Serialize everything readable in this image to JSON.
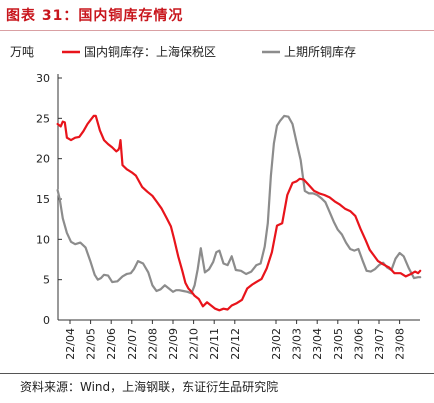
{
  "figure": {
    "title": "图表 31：国内铜库存情况",
    "source": "资料来源：Wind，上海钢联，东证衍生品研究院"
  },
  "chart_data": {
    "type": "line",
    "ylabel": "万吨",
    "ylim": [
      0,
      30
    ],
    "yticks": [
      0,
      5,
      10,
      15,
      20,
      25,
      30
    ],
    "xlim": [
      0,
      17.2
    ],
    "grid": false,
    "legend": "top",
    "xtick_positions": [
      0,
      1,
      2,
      3,
      4,
      5,
      6,
      7,
      8,
      10,
      11,
      12,
      13,
      14,
      15,
      16
    ],
    "xtick_labels": [
      "22/04",
      "22/05",
      "22/06",
      "22/07",
      "22/08",
      "22/09",
      "22/10",
      "22/11",
      "22/12",
      "23/02",
      "23/03",
      "23/04",
      "23/05",
      "23/06",
      "23/07",
      "23/08"
    ],
    "series": [
      {
        "name": "国内铜库存：上海保税区",
        "color": "#e8141b",
        "x": [
          -0.6,
          -0.45,
          -0.35,
          -0.25,
          -0.15,
          0.05,
          0.25,
          0.45,
          0.65,
          0.85,
          1.0,
          1.15,
          1.25,
          1.45,
          1.65,
          1.85,
          2.05,
          2.25,
          2.35,
          2.4,
          2.45,
          2.55,
          2.75,
          3.0,
          3.2,
          3.5,
          3.75,
          4.0,
          4.2,
          4.45,
          4.7,
          4.9,
          5.05,
          5.25,
          5.45,
          5.6,
          5.75,
          5.9,
          6.05,
          6.25,
          6.45,
          6.65,
          6.85,
          7.05,
          7.25,
          7.45,
          7.65,
          7.85,
          8.1,
          8.35,
          8.6,
          8.85,
          9.1,
          9.3,
          9.55,
          9.8,
          10.05,
          10.3,
          10.55,
          10.8,
          11.0,
          11.15,
          11.35,
          11.6,
          11.85,
          12.1,
          12.35,
          12.6,
          12.85,
          13.1,
          13.35,
          13.6,
          13.85,
          14.1,
          14.35,
          14.55,
          14.75,
          14.95,
          15.2,
          15.5,
          15.75,
          16.05,
          16.3,
          16.55,
          16.75,
          16.9,
          17.0
        ],
        "y": [
          24.3,
          24.0,
          24.6,
          24.5,
          22.6,
          22.3,
          22.6,
          22.7,
          23.4,
          24.3,
          24.8,
          25.3,
          25.3,
          23.5,
          22.3,
          21.8,
          21.4,
          20.9,
          21.1,
          21.4,
          22.3,
          19.2,
          18.7,
          18.3,
          17.9,
          16.5,
          15.9,
          15.4,
          14.7,
          13.8,
          12.6,
          11.6,
          10.1,
          7.9,
          6.1,
          4.6,
          3.9,
          3.5,
          3.0,
          2.6,
          1.7,
          2.2,
          1.8,
          1.4,
          1.2,
          1.4,
          1.3,
          1.8,
          2.1,
          2.5,
          3.9,
          4.4,
          4.8,
          5.1,
          6.4,
          8.4,
          11.7,
          12.0,
          15.5,
          17.0,
          17.2,
          17.5,
          17.4,
          16.7,
          16.0,
          15.7,
          15.5,
          15.2,
          14.7,
          14.3,
          13.8,
          13.5,
          12.9,
          11.3,
          9.9,
          8.7,
          8.0,
          7.3,
          6.9,
          6.5,
          5.8,
          5.8,
          5.4,
          5.7,
          6.0,
          5.8,
          6.1
        ]
      },
      {
        "name": "上期所铜库存",
        "color": "#8c8c8c",
        "x": [
          -0.6,
          -0.5,
          -0.35,
          -0.15,
          0.05,
          0.25,
          0.5,
          0.75,
          1.0,
          1.2,
          1.35,
          1.5,
          1.65,
          1.85,
          2.05,
          2.3,
          2.55,
          2.75,
          2.95,
          3.1,
          3.3,
          3.55,
          3.8,
          4.0,
          4.2,
          4.4,
          4.6,
          4.8,
          5.0,
          5.15,
          5.3,
          5.5,
          5.7,
          5.9,
          6.05,
          6.2,
          6.35,
          6.55,
          6.75,
          6.95,
          7.1,
          7.25,
          7.45,
          7.65,
          7.85,
          8.05,
          8.3,
          8.55,
          8.8,
          9.05,
          9.25,
          9.45,
          9.6,
          9.75,
          9.9,
          10.05,
          10.2,
          10.4,
          10.6,
          10.8,
          11.0,
          11.2,
          11.4,
          11.6,
          11.8,
          12.0,
          12.2,
          12.4,
          12.6,
          12.8,
          13.0,
          13.2,
          13.4,
          13.6,
          13.8,
          14.0,
          14.2,
          14.4,
          14.6,
          14.8,
          15.0,
          15.2,
          15.4,
          15.6,
          15.8,
          16.0,
          16.2,
          16.45,
          16.7,
          16.9,
          17.0
        ],
        "y": [
          16.1,
          15.0,
          12.6,
          10.8,
          9.7,
          9.4,
          9.6,
          9.0,
          7.2,
          5.6,
          5.0,
          5.2,
          5.6,
          5.5,
          4.7,
          4.8,
          5.4,
          5.7,
          5.8,
          6.3,
          7.3,
          7.0,
          5.9,
          4.3,
          3.6,
          3.8,
          4.3,
          3.9,
          3.5,
          3.7,
          3.7,
          3.6,
          3.5,
          3.3,
          4.3,
          6.3,
          8.9,
          5.9,
          6.3,
          7.2,
          8.4,
          8.6,
          7.0,
          6.8,
          7.9,
          6.2,
          6.1,
          5.7,
          6.0,
          6.8,
          7.0,
          9.1,
          12.0,
          17.9,
          21.9,
          24.1,
          24.7,
          25.3,
          25.2,
          24.3,
          22.0,
          19.8,
          16.0,
          15.7,
          15.7,
          15.5,
          15.1,
          14.6,
          13.4,
          12.2,
          11.2,
          10.6,
          9.6,
          8.8,
          8.6,
          8.8,
          7.4,
          6.1,
          6.0,
          6.3,
          6.8,
          7.1,
          6.5,
          6.2,
          7.6,
          8.3,
          7.9,
          6.4,
          5.2,
          5.3,
          5.3
        ]
      }
    ]
  }
}
